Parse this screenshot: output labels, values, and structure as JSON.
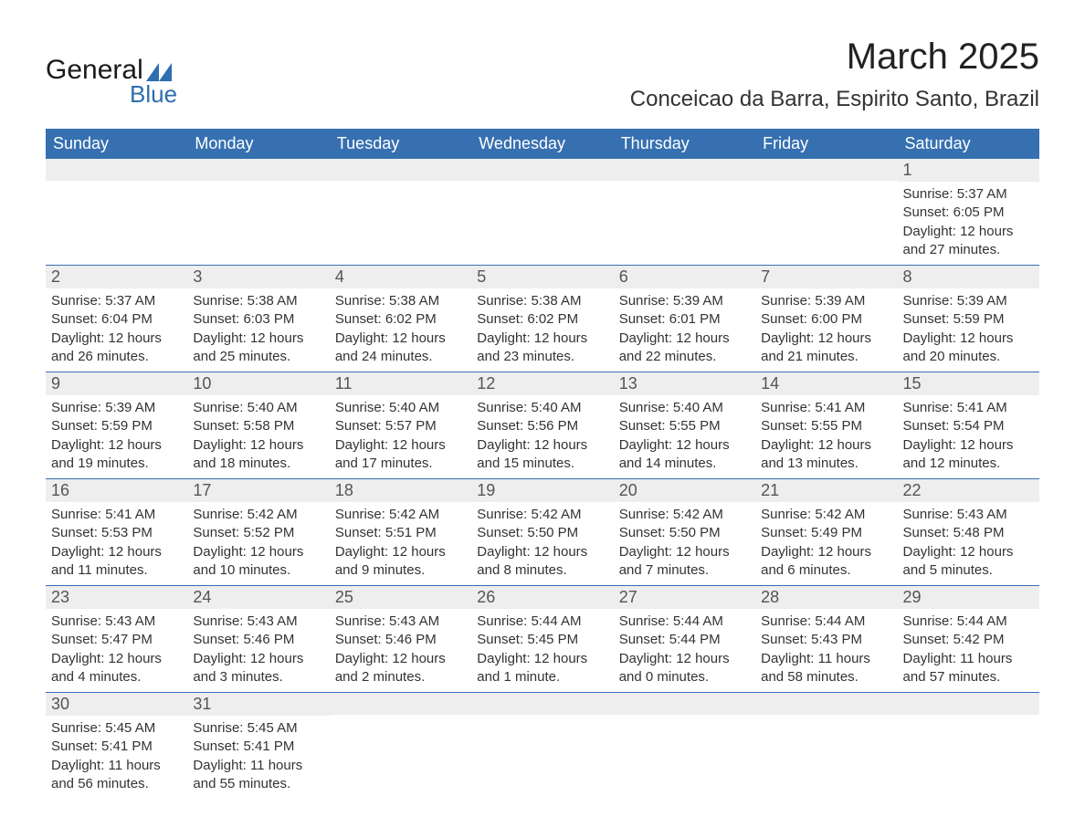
{
  "logo": {
    "text_general": "General",
    "text_blue": "Blue",
    "accent_color": "#2d6db0"
  },
  "header": {
    "month_title": "March 2025",
    "location": "Conceicao da Barra, Espirito Santo, Brazil"
  },
  "styling": {
    "header_bg": "#3670b0",
    "header_text": "#ffffff",
    "daynum_bg": "#eeeeee",
    "daynum_text": "#555555",
    "body_text": "#333333",
    "row_border": "#3670b0",
    "page_bg": "#ffffff",
    "title_fontsize": 40,
    "location_fontsize": 24,
    "header_fontsize": 18,
    "daynum_fontsize": 18,
    "cell_fontsize": 15
  },
  "labels": {
    "sunrise": "Sunrise:",
    "sunset": "Sunset:",
    "daylight": "Daylight:"
  },
  "day_headers": [
    "Sunday",
    "Monday",
    "Tuesday",
    "Wednesday",
    "Thursday",
    "Friday",
    "Saturday"
  ],
  "weeks": [
    [
      null,
      null,
      null,
      null,
      null,
      null,
      {
        "n": "1",
        "sunrise": "5:37 AM",
        "sunset": "6:05 PM",
        "daylight": "12 hours and 27 minutes."
      }
    ],
    [
      {
        "n": "2",
        "sunrise": "5:37 AM",
        "sunset": "6:04 PM",
        "daylight": "12 hours and 26 minutes."
      },
      {
        "n": "3",
        "sunrise": "5:38 AM",
        "sunset": "6:03 PM",
        "daylight": "12 hours and 25 minutes."
      },
      {
        "n": "4",
        "sunrise": "5:38 AM",
        "sunset": "6:02 PM",
        "daylight": "12 hours and 24 minutes."
      },
      {
        "n": "5",
        "sunrise": "5:38 AM",
        "sunset": "6:02 PM",
        "daylight": "12 hours and 23 minutes."
      },
      {
        "n": "6",
        "sunrise": "5:39 AM",
        "sunset": "6:01 PM",
        "daylight": "12 hours and 22 minutes."
      },
      {
        "n": "7",
        "sunrise": "5:39 AM",
        "sunset": "6:00 PM",
        "daylight": "12 hours and 21 minutes."
      },
      {
        "n": "8",
        "sunrise": "5:39 AM",
        "sunset": "5:59 PM",
        "daylight": "12 hours and 20 minutes."
      }
    ],
    [
      {
        "n": "9",
        "sunrise": "5:39 AM",
        "sunset": "5:59 PM",
        "daylight": "12 hours and 19 minutes."
      },
      {
        "n": "10",
        "sunrise": "5:40 AM",
        "sunset": "5:58 PM",
        "daylight": "12 hours and 18 minutes."
      },
      {
        "n": "11",
        "sunrise": "5:40 AM",
        "sunset": "5:57 PM",
        "daylight": "12 hours and 17 minutes."
      },
      {
        "n": "12",
        "sunrise": "5:40 AM",
        "sunset": "5:56 PM",
        "daylight": "12 hours and 15 minutes."
      },
      {
        "n": "13",
        "sunrise": "5:40 AM",
        "sunset": "5:55 PM",
        "daylight": "12 hours and 14 minutes."
      },
      {
        "n": "14",
        "sunrise": "5:41 AM",
        "sunset": "5:55 PM",
        "daylight": "12 hours and 13 minutes."
      },
      {
        "n": "15",
        "sunrise": "5:41 AM",
        "sunset": "5:54 PM",
        "daylight": "12 hours and 12 minutes."
      }
    ],
    [
      {
        "n": "16",
        "sunrise": "5:41 AM",
        "sunset": "5:53 PM",
        "daylight": "12 hours and 11 minutes."
      },
      {
        "n": "17",
        "sunrise": "5:42 AM",
        "sunset": "5:52 PM",
        "daylight": "12 hours and 10 minutes."
      },
      {
        "n": "18",
        "sunrise": "5:42 AM",
        "sunset": "5:51 PM",
        "daylight": "12 hours and 9 minutes."
      },
      {
        "n": "19",
        "sunrise": "5:42 AM",
        "sunset": "5:50 PM",
        "daylight": "12 hours and 8 minutes."
      },
      {
        "n": "20",
        "sunrise": "5:42 AM",
        "sunset": "5:50 PM",
        "daylight": "12 hours and 7 minutes."
      },
      {
        "n": "21",
        "sunrise": "5:42 AM",
        "sunset": "5:49 PM",
        "daylight": "12 hours and 6 minutes."
      },
      {
        "n": "22",
        "sunrise": "5:43 AM",
        "sunset": "5:48 PM",
        "daylight": "12 hours and 5 minutes."
      }
    ],
    [
      {
        "n": "23",
        "sunrise": "5:43 AM",
        "sunset": "5:47 PM",
        "daylight": "12 hours and 4 minutes."
      },
      {
        "n": "24",
        "sunrise": "5:43 AM",
        "sunset": "5:46 PM",
        "daylight": "12 hours and 3 minutes."
      },
      {
        "n": "25",
        "sunrise": "5:43 AM",
        "sunset": "5:46 PM",
        "daylight": "12 hours and 2 minutes."
      },
      {
        "n": "26",
        "sunrise": "5:44 AM",
        "sunset": "5:45 PM",
        "daylight": "12 hours and 1 minute."
      },
      {
        "n": "27",
        "sunrise": "5:44 AM",
        "sunset": "5:44 PM",
        "daylight": "12 hours and 0 minutes."
      },
      {
        "n": "28",
        "sunrise": "5:44 AM",
        "sunset": "5:43 PM",
        "daylight": "11 hours and 58 minutes."
      },
      {
        "n": "29",
        "sunrise": "5:44 AM",
        "sunset": "5:42 PM",
        "daylight": "11 hours and 57 minutes."
      }
    ],
    [
      {
        "n": "30",
        "sunrise": "5:45 AM",
        "sunset": "5:41 PM",
        "daylight": "11 hours and 56 minutes."
      },
      {
        "n": "31",
        "sunrise": "5:45 AM",
        "sunset": "5:41 PM",
        "daylight": "11 hours and 55 minutes."
      },
      null,
      null,
      null,
      null,
      null
    ]
  ]
}
